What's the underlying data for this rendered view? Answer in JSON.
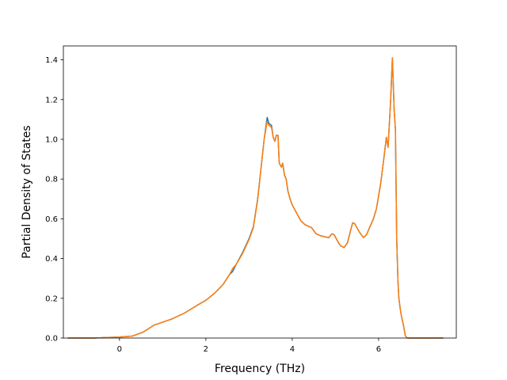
{
  "chart_data": {
    "type": "line",
    "title": "",
    "xlabel": "Frequency (THz)",
    "ylabel": "Partial Density of States",
    "xlim": [
      -1.3,
      7.8
    ],
    "ylim": [
      0.0,
      1.47
    ],
    "xticks": [
      0,
      2,
      4,
      6
    ],
    "yticks": [
      0.0,
      0.2,
      0.4,
      0.6,
      0.8,
      1.0,
      1.2,
      1.4
    ],
    "xtick_labels": [
      "0",
      "2",
      "4",
      "6"
    ],
    "ytick_labels": [
      "0.0",
      "0.2",
      "0.4",
      "0.6",
      "0.8",
      "1.0",
      "1.2",
      "1.4"
    ],
    "grid": false,
    "series": [
      {
        "color": "#1f77b4",
        "x": [
          -1.2,
          -0.6,
          0.0,
          0.3,
          0.55,
          0.8,
          1.0,
          1.2,
          1.5,
          1.8,
          2.0,
          2.2,
          2.4,
          2.55,
          2.62,
          2.7,
          2.85,
          3.0,
          3.1,
          3.2,
          3.3,
          3.35,
          3.42,
          3.46,
          3.52,
          3.56,
          3.6,
          3.63,
          3.67,
          3.7,
          3.75,
          3.78,
          3.82,
          3.86,
          3.9,
          3.95,
          4.0,
          4.1,
          4.2,
          4.3,
          4.45,
          4.55,
          4.65,
          4.75,
          4.85,
          4.92,
          4.97,
          5.02,
          5.07,
          5.12,
          5.2,
          5.28,
          5.35,
          5.4,
          5.45,
          5.5,
          5.55,
          5.6,
          5.65,
          5.72,
          5.8,
          5.88,
          5.95,
          6.05,
          6.12,
          6.18,
          6.22,
          6.28,
          6.32,
          6.36,
          6.39,
          6.42,
          6.45,
          6.47,
          6.5,
          6.53,
          6.55,
          6.58,
          6.62,
          6.67,
          6.72,
          6.75,
          6.8,
          6.9,
          7.1,
          7.5
        ],
        "y": [
          0.0,
          0.0,
          0.005,
          0.01,
          0.03,
          0.065,
          0.08,
          0.095,
          0.125,
          0.165,
          0.19,
          0.225,
          0.27,
          0.32,
          0.335,
          0.37,
          0.43,
          0.5,
          0.56,
          0.7,
          0.9,
          1.0,
          1.11,
          1.08,
          1.07,
          1.01,
          0.99,
          1.02,
          1.02,
          0.88,
          0.86,
          0.88,
          0.82,
          0.8,
          0.74,
          0.7,
          0.67,
          0.63,
          0.59,
          0.57,
          0.555,
          0.525,
          0.515,
          0.51,
          0.505,
          0.525,
          0.52,
          0.5,
          0.48,
          0.465,
          0.455,
          0.48,
          0.54,
          0.58,
          0.575,
          0.555,
          0.535,
          0.52,
          0.505,
          0.52,
          0.56,
          0.6,
          0.65,
          0.78,
          0.9,
          1.01,
          0.96,
          1.2,
          1.41,
          1.15,
          1.05,
          0.5,
          0.28,
          0.2,
          0.15,
          0.11,
          0.09,
          0.06,
          0.01,
          0.0,
          0.0,
          0.0,
          0.0,
          0.0,
          0.0,
          0.0
        ]
      },
      {
        "color": "#ff7f0e",
        "x": [
          -1.2,
          -0.6,
          0.0,
          0.3,
          0.55,
          0.8,
          1.0,
          1.2,
          1.5,
          1.8,
          2.0,
          2.2,
          2.4,
          2.55,
          2.62,
          2.7,
          2.85,
          3.0,
          3.1,
          3.2,
          3.3,
          3.35,
          3.42,
          3.46,
          3.52,
          3.56,
          3.6,
          3.63,
          3.67,
          3.7,
          3.75,
          3.78,
          3.82,
          3.86,
          3.9,
          3.95,
          4.0,
          4.1,
          4.2,
          4.3,
          4.45,
          4.55,
          4.65,
          4.75,
          4.85,
          4.92,
          4.97,
          5.02,
          5.07,
          5.12,
          5.2,
          5.28,
          5.35,
          5.4,
          5.45,
          5.5,
          5.55,
          5.6,
          5.65,
          5.72,
          5.8,
          5.88,
          5.95,
          6.05,
          6.12,
          6.18,
          6.22,
          6.28,
          6.32,
          6.36,
          6.39,
          6.42,
          6.45,
          6.47,
          6.5,
          6.53,
          6.55,
          6.58,
          6.62,
          6.67,
          6.72,
          6.75,
          6.8,
          6.9,
          7.1,
          7.5
        ],
        "y": [
          0.0,
          0.0,
          0.005,
          0.01,
          0.03,
          0.065,
          0.08,
          0.095,
          0.125,
          0.165,
          0.19,
          0.225,
          0.27,
          0.32,
          0.35,
          0.37,
          0.425,
          0.495,
          0.555,
          0.695,
          0.9,
          1.0,
          1.09,
          1.07,
          1.06,
          1.01,
          0.99,
          1.02,
          1.02,
          0.88,
          0.86,
          0.88,
          0.82,
          0.8,
          0.74,
          0.7,
          0.67,
          0.63,
          0.59,
          0.57,
          0.555,
          0.525,
          0.515,
          0.51,
          0.505,
          0.525,
          0.52,
          0.5,
          0.48,
          0.465,
          0.455,
          0.48,
          0.54,
          0.58,
          0.575,
          0.555,
          0.535,
          0.52,
          0.505,
          0.52,
          0.56,
          0.6,
          0.65,
          0.78,
          0.9,
          1.01,
          0.96,
          1.2,
          1.41,
          1.15,
          1.05,
          0.5,
          0.28,
          0.2,
          0.15,
          0.11,
          0.09,
          0.06,
          0.01,
          0.0,
          0.0,
          0.0,
          0.0,
          0.0,
          0.0,
          0.0
        ]
      }
    ]
  }
}
